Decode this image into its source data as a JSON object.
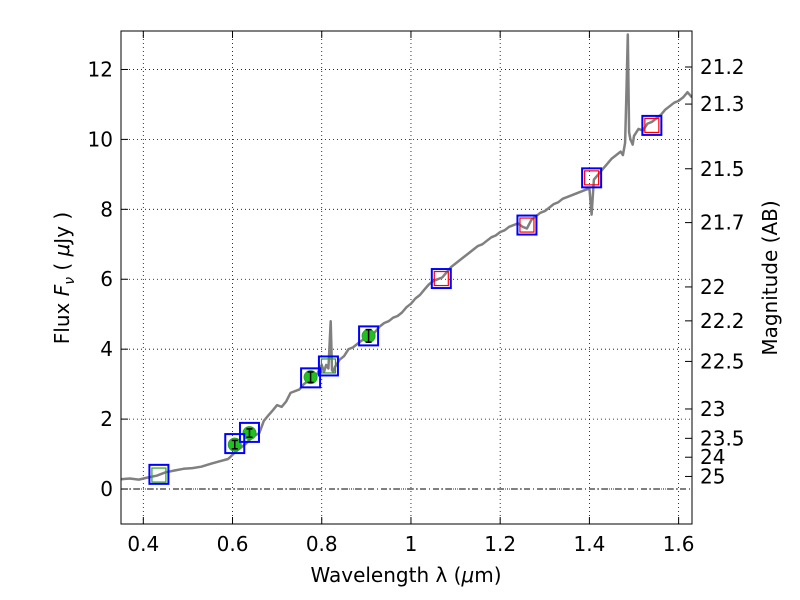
{
  "chart_data": {
    "type": "line",
    "title": "",
    "xlabel_prefix": "Wavelength  λ (",
    "xlabel_unit_mu": "μ",
    "xlabel_suffix": "m)",
    "ylabel_prefix": "Flux  ",
    "ylabel_F": "F",
    "ylabel_nu": "ν",
    "ylabel_mid": "  (  ",
    "ylabel_mu": "μ",
    "ylabel_suffix": "Jy )",
    "y2label": "Magnitude (AB)",
    "xlim": [
      0.35,
      1.63
    ],
    "ylim": [
      -1.0,
      13.1
    ],
    "grid": true,
    "xticks": [
      0.4,
      0.6,
      0.8,
      1.0,
      1.2,
      1.4,
      1.6
    ],
    "xtick_labels": [
      "0.4",
      "0.6",
      "0.8",
      "1",
      "1.2",
      "1.4",
      "1.6"
    ],
    "yticks": [
      0,
      2,
      4,
      6,
      8,
      10,
      12
    ],
    "ytick_labels": [
      "0",
      "2",
      "4",
      "6",
      "8",
      "10",
      "12"
    ],
    "right_ticks": [
      {
        "label": "21.2",
        "flux": 12.07
      },
      {
        "label": "21.3",
        "flux": 11.01
      },
      {
        "label": "21.5",
        "flux": 9.16
      },
      {
        "label": "21.7",
        "flux": 7.62
      },
      {
        "label": "22",
        "flux": 5.78
      },
      {
        "label": "22.2",
        "flux": 4.81
      },
      {
        "label": "22.5",
        "flux": 3.65
      },
      {
        "label": "23",
        "flux": 2.29
      },
      {
        "label": "23.5",
        "flux": 1.45
      },
      {
        "label": "24",
        "flux": 0.91
      },
      {
        "label": "25",
        "flux": 0.36
      }
    ],
    "series": [
      {
        "name": "spectrum",
        "color": "#808080",
        "x": [
          0.35,
          0.37,
          0.39,
          0.41,
          0.43,
          0.45,
          0.47,
          0.49,
          0.51,
          0.53,
          0.55,
          0.57,
          0.59,
          0.61,
          0.63,
          0.645,
          0.66,
          0.67,
          0.68,
          0.69,
          0.7,
          0.71,
          0.72,
          0.73,
          0.74,
          0.75,
          0.76,
          0.77,
          0.78,
          0.79,
          0.8,
          0.805,
          0.81,
          0.815,
          0.82,
          0.823,
          0.826,
          0.83,
          0.84,
          0.85,
          0.86,
          0.87,
          0.88,
          0.89,
          0.9,
          0.91,
          0.92,
          0.93,
          0.94,
          0.95,
          0.96,
          0.97,
          0.98,
          0.99,
          1.0,
          1.01,
          1.02,
          1.03,
          1.04,
          1.05,
          1.06,
          1.07,
          1.08,
          1.09,
          1.1,
          1.11,
          1.12,
          1.13,
          1.14,
          1.15,
          1.16,
          1.17,
          1.18,
          1.19,
          1.2,
          1.21,
          1.22,
          1.23,
          1.24,
          1.25,
          1.26,
          1.27,
          1.28,
          1.29,
          1.3,
          1.31,
          1.32,
          1.33,
          1.34,
          1.35,
          1.36,
          1.37,
          1.38,
          1.39,
          1.4,
          1.405,
          1.41,
          1.42,
          1.43,
          1.44,
          1.45,
          1.46,
          1.47,
          1.475,
          1.48,
          1.483,
          1.486,
          1.489,
          1.492,
          1.497,
          1.5,
          1.51,
          1.52,
          1.53,
          1.54,
          1.55,
          1.56,
          1.57,
          1.58,
          1.59,
          1.6,
          1.61,
          1.62,
          1.63
        ],
        "y": [
          0.28,
          0.3,
          0.27,
          0.33,
          0.38,
          0.48,
          0.53,
          0.58,
          0.6,
          0.64,
          0.72,
          0.79,
          0.86,
          1.1,
          1.3,
          1.5,
          1.6,
          1.95,
          2.1,
          2.25,
          2.4,
          2.35,
          2.5,
          2.75,
          2.8,
          2.85,
          3.0,
          3.1,
          3.2,
          3.3,
          3.55,
          3.35,
          3.55,
          3.45,
          4.8,
          3.4,
          3.35,
          3.5,
          3.7,
          3.8,
          4.0,
          4.05,
          4.15,
          4.25,
          4.3,
          4.35,
          4.5,
          4.65,
          4.75,
          4.8,
          4.9,
          4.95,
          5.05,
          5.2,
          5.3,
          5.45,
          5.55,
          5.7,
          5.85,
          5.95,
          6.0,
          6.05,
          6.2,
          6.35,
          6.45,
          6.55,
          6.65,
          6.75,
          6.85,
          6.95,
          7.0,
          7.1,
          7.2,
          7.25,
          7.35,
          7.4,
          7.5,
          7.55,
          7.6,
          7.5,
          7.45,
          7.7,
          7.8,
          7.9,
          7.95,
          8.05,
          8.15,
          8.2,
          8.3,
          8.35,
          8.4,
          8.45,
          8.5,
          8.55,
          8.6,
          7.85,
          8.85,
          9.0,
          9.15,
          9.3,
          9.45,
          9.55,
          9.65,
          9.55,
          9.9,
          11.3,
          13.0,
          10.2,
          10.0,
          9.85,
          10.1,
          10.3,
          10.25,
          10.45,
          10.5,
          10.6,
          10.7,
          10.85,
          10.95,
          11.05,
          11.1,
          11.2,
          11.35,
          11.2
        ]
      }
    ],
    "photometry_boxes": [
      {
        "x": 0.435,
        "y": 0.42
      },
      {
        "x": 0.605,
        "y": 1.3
      },
      {
        "x": 0.638,
        "y": 1.62
      },
      {
        "x": 0.775,
        "y": 3.18
      },
      {
        "x": 0.815,
        "y": 3.52
      },
      {
        "x": 0.905,
        "y": 4.38
      },
      {
        "x": 1.068,
        "y": 6.02
      },
      {
        "x": 1.26,
        "y": 7.55
      },
      {
        "x": 1.405,
        "y": 8.9
      },
      {
        "x": 1.54,
        "y": 10.4
      }
    ],
    "model_squares_green": [
      {
        "x": 0.435,
        "y": 0.4
      },
      {
        "x": 0.815,
        "y": 3.52
      }
    ],
    "model_squares_red": [
      {
        "x": 1.068,
        "y": 6.02
      },
      {
        "x": 1.26,
        "y": 7.55
      },
      {
        "x": 1.405,
        "y": 8.9
      },
      {
        "x": 1.54,
        "y": 10.4
      }
    ],
    "observed_points": [
      {
        "x": 0.605,
        "y": 1.27,
        "err": 0.12
      },
      {
        "x": 0.638,
        "y": 1.6,
        "err": 0.12
      },
      {
        "x": 0.775,
        "y": 3.2,
        "err": 0.15
      },
      {
        "x": 0.905,
        "y": 4.38,
        "err": 0.18
      }
    ],
    "colors": {
      "box": "#0000ff",
      "model_green": "#2ca02c",
      "model_red": "#ff0000",
      "point_fill": "#1fc01f",
      "grid": "#000000"
    }
  }
}
